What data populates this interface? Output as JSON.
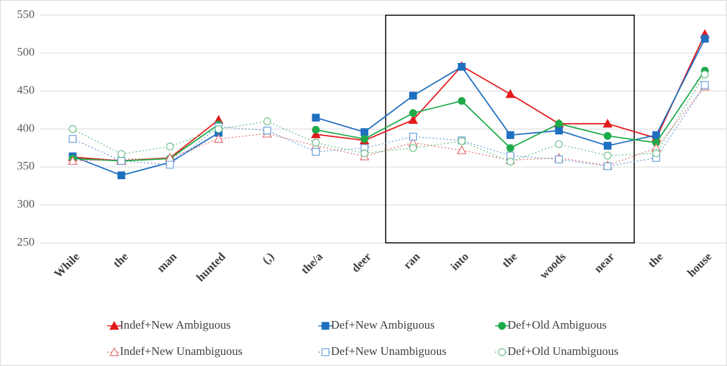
{
  "chart_data": {
    "type": "line",
    "categories": [
      "While",
      "the",
      "man",
      "hunted",
      "(,)",
      "the/a",
      "deer",
      "ran",
      "into",
      "the",
      "woods",
      "near",
      "the",
      "house"
    ],
    "series": [
      {
        "name": "Indef+New Ambiguous",
        "color": "#e31a1c",
        "marker": "triangle",
        "filled": true,
        "dashed": false,
        "values": [
          363,
          358,
          362,
          412,
          null,
          393,
          385,
          412,
          483,
          446,
          407,
          407,
          388,
          525
        ]
      },
      {
        "name": "Def+New Ambiguous",
        "color": "#1f6fc0",
        "marker": "square",
        "filled": true,
        "dashed": false,
        "values": [
          364,
          339,
          356,
          395,
          null,
          415,
          396,
          444,
          482,
          392,
          398,
          378,
          392,
          519
        ]
      },
      {
        "name": "Def+Old Ambiguous",
        "color": "#1faa4a",
        "marker": "circle",
        "filled": true,
        "dashed": false,
        "values": [
          361,
          358,
          361,
          406,
          null,
          399,
          387,
          421,
          437,
          375,
          407,
          391,
          382,
          477
        ]
      },
      {
        "name": "Indef+New Unambiguous",
        "color": "#e07070",
        "marker": "triangle",
        "filled": false,
        "dashed": true,
        "values": [
          358,
          360,
          362,
          387,
          394,
          378,
          364,
          382,
          372,
          359,
          362,
          352,
          375,
          456
        ]
      },
      {
        "name": "Def+New Unambiguous",
        "color": "#6a9fd8",
        "marker": "square",
        "filled": false,
        "dashed": true,
        "values": [
          387,
          358,
          353,
          403,
          398,
          370,
          375,
          390,
          385,
          365,
          360,
          351,
          362,
          458
        ]
      },
      {
        "name": "Def+Old Unambiguous",
        "color": "#6cc08a",
        "marker": "circle",
        "filled": false,
        "dashed": true,
        "values": [
          400,
          367,
          377,
          400,
          410,
          382,
          368,
          375,
          384,
          357,
          380,
          365,
          368,
          472
        ]
      }
    ],
    "ylim": [
      250,
      550
    ],
    "yticks": [
      250,
      300,
      350,
      400,
      450,
      500,
      550
    ],
    "grid": true,
    "legend": "bottom"
  }
}
